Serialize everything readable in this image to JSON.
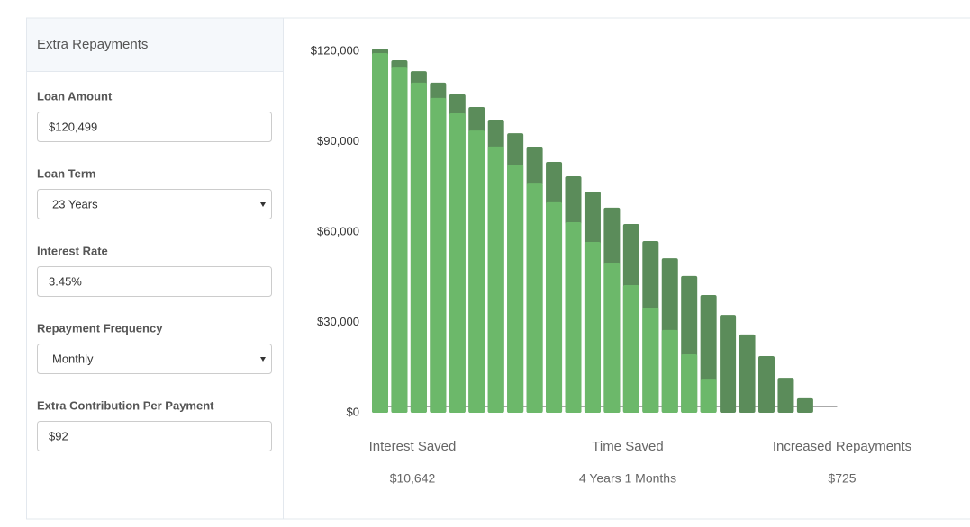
{
  "panel": {
    "title": "Extra Repayments",
    "fields": [
      {
        "label": "Loan Amount",
        "value": "$120,499",
        "control": "input"
      },
      {
        "label": "Loan Term",
        "value": "23 Years",
        "control": "select"
      },
      {
        "label": "Interest Rate",
        "value": "3.45%",
        "control": "input"
      },
      {
        "label": "Repayment Frequency",
        "value": "Monthly",
        "control": "select"
      },
      {
        "label": "Extra Contribution Per Payment",
        "value": "$92",
        "control": "input"
      }
    ]
  },
  "chart_data": {
    "type": "bar",
    "categories": [
      null,
      null,
      null,
      null,
      null,
      null,
      null,
      null,
      null,
      null,
      null,
      null,
      null,
      null,
      null,
      null,
      null,
      null,
      null,
      null,
      null,
      null,
      null
    ],
    "series": [
      {
        "color": "#5b8c5a",
        "values": [
          120900,
          117000,
          113400,
          109600,
          105700,
          101500,
          97300,
          92800,
          88100,
          83300,
          78500,
          73400,
          68100,
          62700,
          57000,
          51300,
          45400,
          39100,
          32500,
          26000,
          18800,
          11600,
          4800
        ]
      },
      {
        "color": "#6cb86a",
        "values": [
          119400,
          114600,
          109600,
          104500,
          99400,
          93700,
          88400,
          82400,
          76100,
          69900,
          63300,
          56700,
          49600,
          42400,
          34900,
          27500,
          19400,
          11300,
          0,
          0,
          0,
          0,
          0
        ]
      }
    ],
    "ylim": [
      0,
      120000
    ],
    "yticks": [
      {
        "value": 0,
        "label": "$0"
      },
      {
        "value": 30000,
        "label": "$30,000"
      },
      {
        "value": 60000,
        "label": "$60,000"
      },
      {
        "value": 90000,
        "label": "$90,000"
      },
      {
        "value": 120000,
        "label": "$120,000"
      }
    ]
  },
  "summary": [
    {
      "label": "Interest Saved",
      "value": "$10,642"
    },
    {
      "label": "Time Saved",
      "value": "4 Years 1 Months"
    },
    {
      "label": "Increased Repayments",
      "value": "$725"
    }
  ]
}
